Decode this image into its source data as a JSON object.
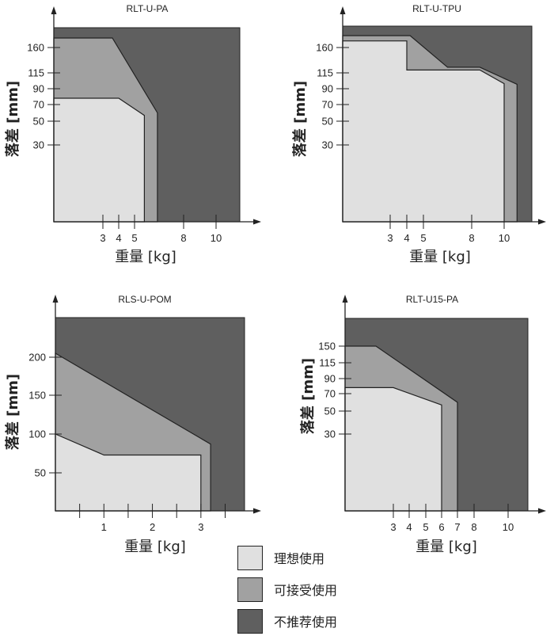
{
  "zone_colors": {
    "ideal": "#e0e0e0",
    "acceptable": "#a1a1a1",
    "not_recommended": "#5f5f5f",
    "axis": "#222222"
  },
  "legend": [
    {
      "key": "ideal",
      "label": "理想使用"
    },
    {
      "key": "acceptable",
      "label": "可接受使用"
    },
    {
      "key": "not_recommended",
      "label": "不推荐使用"
    }
  ],
  "chart_data": [
    {
      "type": "area",
      "title": "RLT-U-PA",
      "xlabel": "重量 [kg]",
      "ylabel": "落差 [mm]",
      "x_ticks": [
        3,
        4,
        5,
        8,
        10
      ],
      "y_ticks": [
        30,
        50,
        70,
        90,
        115,
        160
      ],
      "y_scale": "nonlinear (labelled ticks only)",
      "xlim": [
        0,
        11.5
      ],
      "ylim": [
        0,
        200
      ],
      "regions": {
        "ideal": [
          [
            0,
            78
          ],
          [
            4,
            78
          ],
          [
            5.6,
            57
          ],
          [
            5.6,
            0
          ]
        ],
        "acceptable": [
          [
            0,
            175
          ],
          [
            3.6,
            175
          ],
          [
            6.4,
            60
          ],
          [
            6.4,
            0
          ]
        ],
        "not_recommended": "remaining area up to x=11.5, y=200"
      }
    },
    {
      "type": "area",
      "title": "RLT-U-TPU",
      "xlabel": "重量 [kg]",
      "ylabel": "落差 [mm]",
      "x_ticks": [
        3,
        4,
        5,
        8,
        10
      ],
      "y_ticks": [
        30,
        50,
        70,
        90,
        115,
        160
      ],
      "y_scale": "nonlinear (labelled ticks only)",
      "xlim": [
        0,
        11.5
      ],
      "ylim": [
        0,
        200
      ],
      "regions": {
        "ideal": [
          [
            0,
            170
          ],
          [
            4,
            170
          ],
          [
            4,
            120
          ],
          [
            8.5,
            120
          ],
          [
            10,
            98
          ],
          [
            10,
            0
          ]
        ],
        "acceptable": [
          [
            0,
            178
          ],
          [
            4.2,
            178
          ],
          [
            6.5,
            125
          ],
          [
            8.5,
            125
          ],
          [
            10.7,
            97
          ],
          [
            10.7,
            0
          ]
        ],
        "not_recommended": "remaining area up to x=11.5, y=200"
      }
    },
    {
      "type": "area",
      "title": "RLS-U-POM",
      "xlabel": "重量 [kg]",
      "ylabel": "落差 [mm]",
      "x_ticks": [
        1,
        2,
        3
      ],
      "x_minor_ticks": [
        0.5,
        1.5,
        2.5,
        3.5
      ],
      "y_ticks": [
        50,
        100,
        150,
        200
      ],
      "xlim": [
        0,
        3.9
      ],
      "ylim": [
        0,
        250
      ],
      "regions": {
        "ideal": [
          [
            0,
            100
          ],
          [
            1,
            73
          ],
          [
            3,
            73
          ],
          [
            3,
            0
          ]
        ],
        "acceptable": [
          [
            0,
            205
          ],
          [
            3.2,
            87
          ],
          [
            3.2,
            0
          ]
        ],
        "not_recommended": "remaining area up to x=3.9, y=250"
      }
    },
    {
      "type": "area",
      "title": "RLT-U15-PA",
      "xlabel": "重量 [kg]",
      "ylabel": "落差 [mm]",
      "x_ticks": [
        3,
        4,
        5,
        6,
        7,
        8,
        10
      ],
      "y_ticks": [
        30,
        50,
        70,
        90,
        115,
        150
      ],
      "y_scale": "nonlinear (labelled ticks only)",
      "xlim": [
        0,
        11.5
      ],
      "ylim": [
        0,
        200
      ],
      "regions": {
        "ideal": [
          [
            0,
            78
          ],
          [
            3,
            78
          ],
          [
            6,
            57
          ],
          [
            6,
            0
          ]
        ],
        "acceptable": [
          [
            0,
            150
          ],
          [
            2,
            150
          ],
          [
            7,
            60
          ],
          [
            7,
            0
          ]
        ],
        "not_recommended": "remaining area up to x=11.5, y=200"
      }
    }
  ]
}
